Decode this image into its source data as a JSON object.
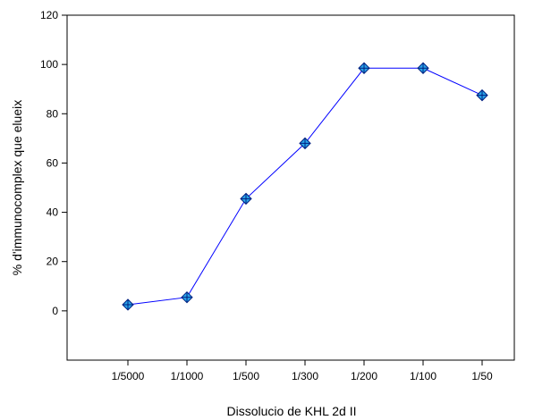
{
  "chart_data": {
    "type": "line",
    "title": "",
    "xlabel": "Dissolucio de KHL 2d II",
    "ylabel": "% d'immunocomplex que elueix",
    "categories": [
      "1/5000",
      "1/1000",
      "1/500",
      "1/300",
      "1/200",
      "1/100",
      "1/50"
    ],
    "series": [
      {
        "values": [
          2.5,
          5.5,
          45.5,
          68,
          98.5,
          98.5,
          87.5
        ],
        "line_color": "#0000ff",
        "marker": "diamond-crosshair",
        "marker_fill": "#29a3e8",
        "marker_edge": "#002080"
      }
    ],
    "ylim": [
      -20,
      120
    ],
    "yticks": [
      0,
      20,
      40,
      60,
      80,
      100,
      120
    ],
    "grid": false,
    "legend": "none"
  }
}
